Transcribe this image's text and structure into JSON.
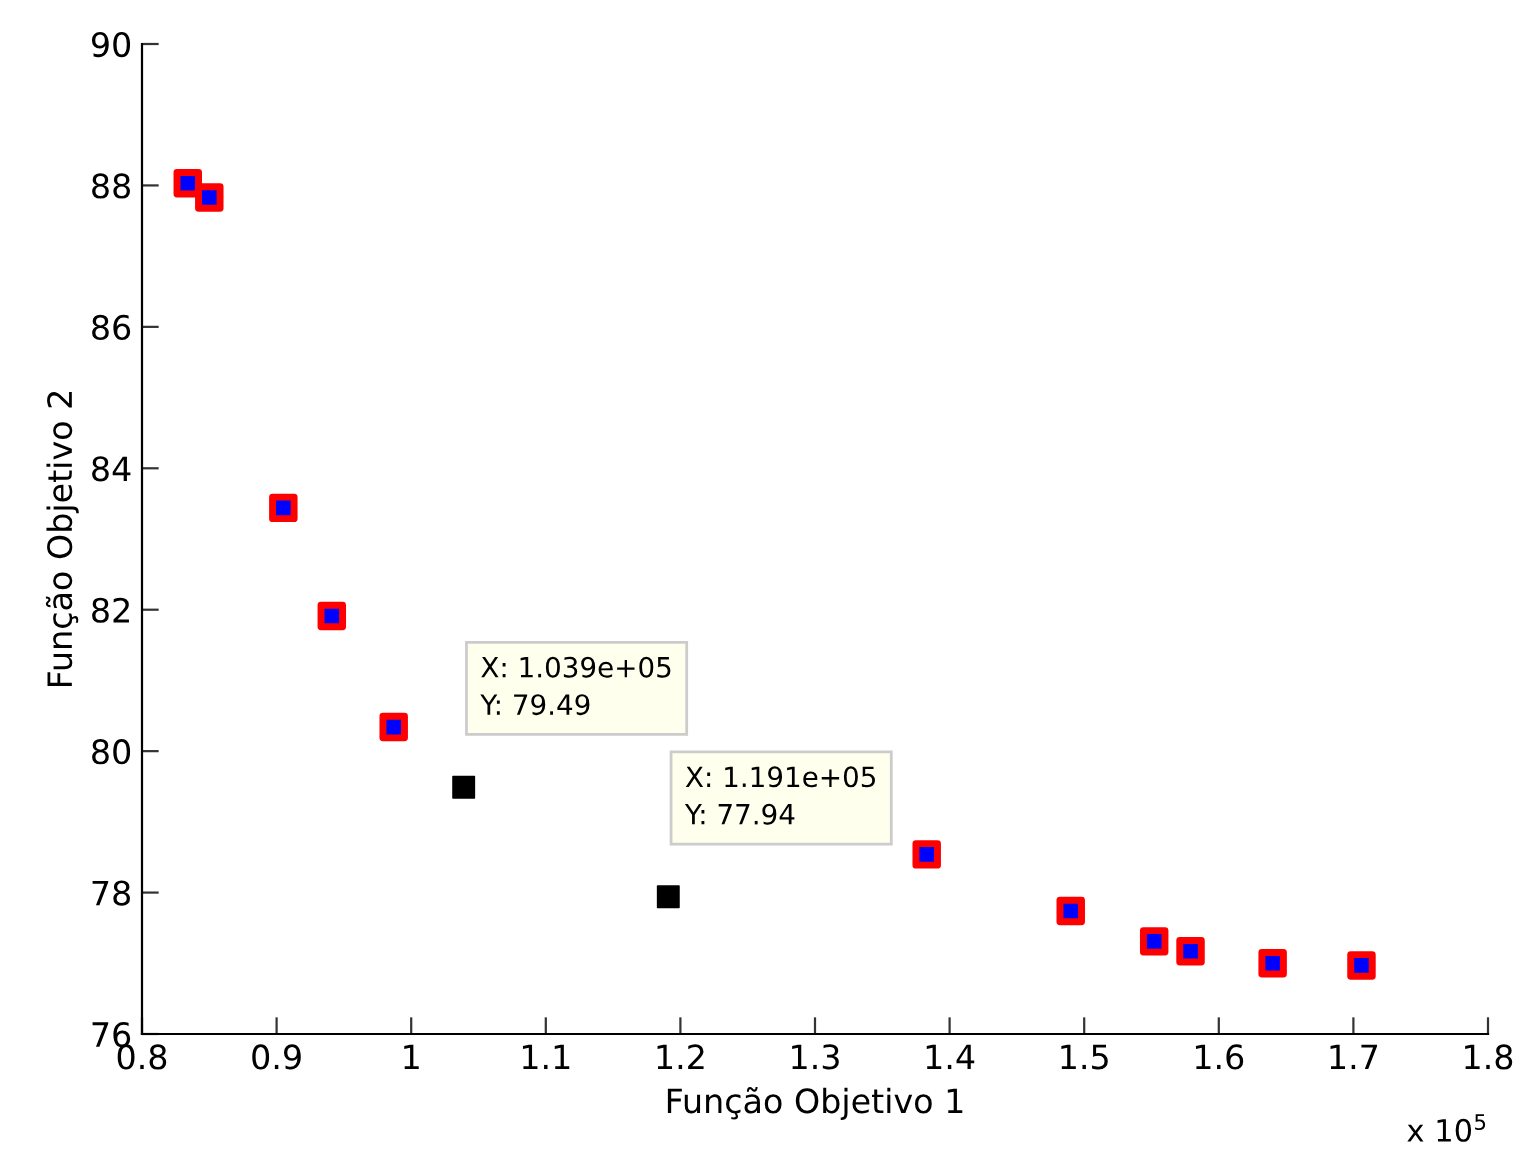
{
  "chart_data": {
    "type": "scatter",
    "xlabel": "Função Objetivo 1",
    "ylabel": "Função Objetivo 2",
    "xlim": [
      0.8,
      1.8
    ],
    "xticks": [
      0.8,
      0.9,
      {
        "value": 1.0,
        "label": "1"
      },
      1.1,
      1.2,
      1.3,
      1.4,
      1.5,
      1.6,
      1.7,
      1.8
    ],
    "ylim": [
      76,
      90
    ],
    "yticks": [
      76,
      78,
      80,
      82,
      84,
      86,
      88,
      90
    ],
    "grid": false,
    "legend": false,
    "marker": "square",
    "series": [
      {
        "color": "#0000ff",
        "x": [
          0.834,
          0.85,
          0.905,
          0.941,
          0.987,
          1.383,
          1.49,
          1.552,
          1.579,
          1.64,
          1.706
        ],
        "values": [
          88.03,
          87.83,
          83.44,
          81.91,
          80.34,
          78.54,
          77.74,
          77.31,
          77.17,
          77.0,
          76.97
        ]
      },
      {
        "color": "#000000",
        "x": [
          1.039,
          1.191
        ],
        "values": [
          79.49,
          77.94
        ]
      }
    ],
    "annotations": [
      {
        "text": "X: 1.039e+05\nY: 79.49",
        "x": 1.039,
        "y": 79.49
      },
      {
        "text": "X: 1.191e+05\nY: 77.94",
        "x": 1.191,
        "y": 77.94
      },
      "x 10$^{5}$"
    ]
  }
}
